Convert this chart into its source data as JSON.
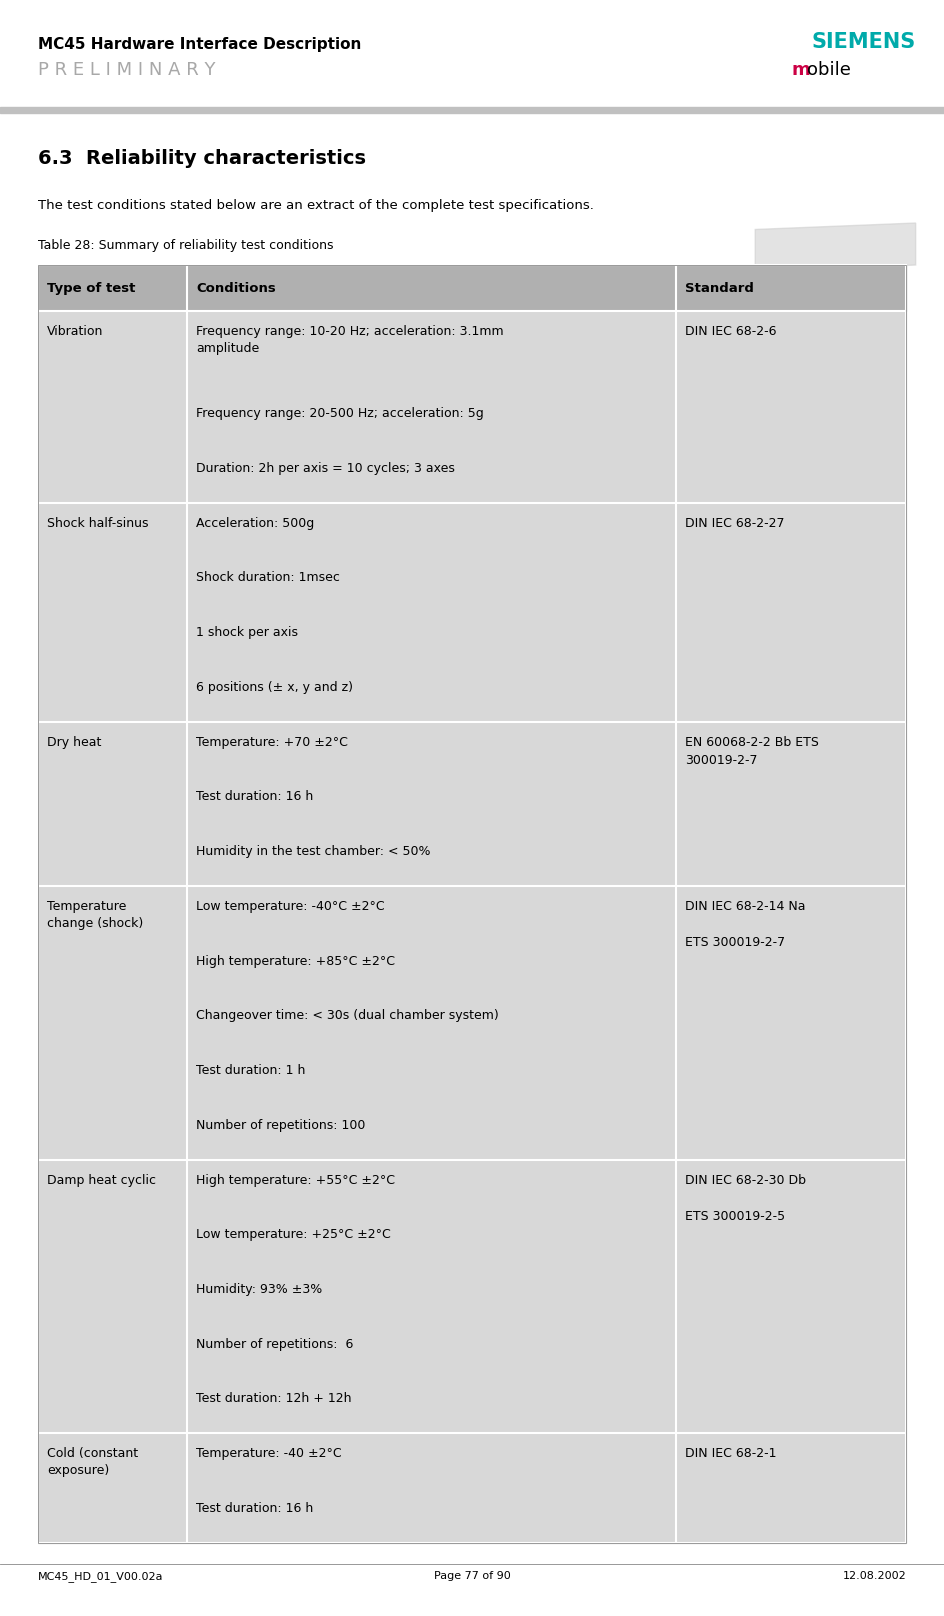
{
  "header_title": "MC45 Hardware Interface Description",
  "header_preliminary": "P R E L I M I N A R Y",
  "siemens_color": "#00AAAA",
  "mobile_m_color": "#CC0044",
  "section_title": "6.3  Reliability characteristics",
  "intro_text": "The test conditions stated below are an extract of the complete test specifications.",
  "table_caption": "Table 28: Summary of reliability test conditions",
  "footer_left": "MC45_HD_01_V00.02a",
  "footer_center": "Page 77 of 90",
  "footer_right": "12.08.2002",
  "header_row": [
    "Type of test",
    "Conditions",
    "Standard"
  ],
  "header_bg": "#B0B0B0",
  "row_bg": "#D8D8D8",
  "table_rows": [
    {
      "type": "Vibration",
      "conditions": [
        "Frequency range: 10-20 Hz; acceleration: 3.1mm\namplitude",
        "Frequency range: 20-500 Hz; acceleration: 5g",
        "Duration: 2h per axis = 10 cycles; 3 axes"
      ],
      "standard": "DIN IEC 68-2-6"
    },
    {
      "type": "Shock half-sinus",
      "conditions": [
        "Acceleration: 500g",
        "Shock duration: 1msec",
        "1 shock per axis",
        "6 positions (± x, y and z)"
      ],
      "standard": "DIN IEC 68-2-27"
    },
    {
      "type": "Dry heat",
      "conditions": [
        "Temperature: +70 ±2°C",
        "Test duration: 16 h",
        "Humidity in the test chamber: < 50%"
      ],
      "standard": "EN 60068-2-2 Bb ETS\n300019-2-7"
    },
    {
      "type": "Temperature\nchange (shock)",
      "conditions": [
        "Low temperature: -40°C ±2°C",
        "High temperature: +85°C ±2°C",
        "Changeover time: < 30s (dual chamber system)",
        "Test duration: 1 h",
        "Number of repetitions: 100"
      ],
      "standard": "DIN IEC 68-2-14 Na\n\nETS 300019-2-7"
    },
    {
      "type": "Damp heat cyclic",
      "conditions": [
        "High temperature: +55°C ±2°C",
        "Low temperature: +25°C ±2°C",
        "Humidity: 93% ±3%",
        "Number of repetitions:  6",
        "Test duration: 12h + 12h"
      ],
      "standard": "DIN IEC 68-2-30 Db\n\nETS 300019-2-5"
    },
    {
      "type": "Cold (constant\nexposure)",
      "conditions": [
        "Temperature: -40 ±2°C",
        "Test duration: 16 h"
      ],
      "standard": "DIN IEC 68-2-1"
    }
  ]
}
